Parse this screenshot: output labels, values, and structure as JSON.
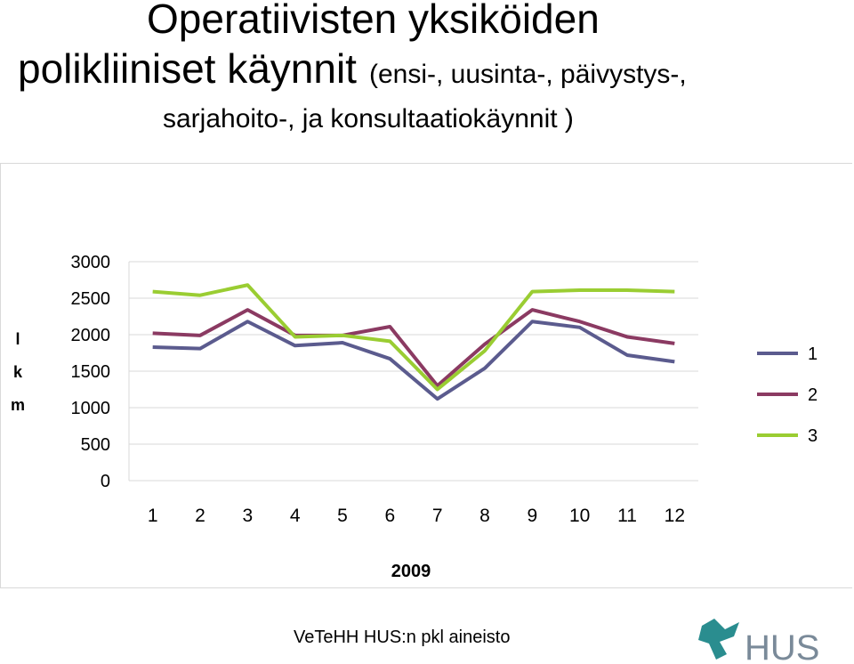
{
  "title": {
    "line1": "Operatiivisten yksiköiden",
    "line2_main": "polikliiniset käynnit",
    "line2_sub": "(ensi-, uusinta-, päivystys-,",
    "line3": "sarjahoito-, ja konsultaatiokäynnit )"
  },
  "footer": {
    "source": "VeTeHH HUS:n pkl aineisto",
    "logo_text": "HUS"
  },
  "colors": {
    "series1": "#5b5b8e",
    "series2": "#8b3a62",
    "series3": "#9acd32",
    "grid": "#d9d9d9",
    "logo_teal": "#2a8d8f",
    "logo_gray": "#7a8a99"
  },
  "chart_data": {
    "type": "line",
    "xlabel": "2009",
    "ylabel": "l k m",
    "ylim": [
      0,
      3000
    ],
    "yticks": [
      3000,
      2500,
      2000,
      1500,
      1000,
      500,
      0
    ],
    "grid": true,
    "legend_position": "right",
    "categories": [
      "1",
      "2",
      "3",
      "4",
      "5",
      "6",
      "7",
      "8",
      "9",
      "10",
      "11",
      "12"
    ],
    "series": [
      {
        "name": "1",
        "values": [
          1830,
          1810,
          2180,
          1850,
          1890,
          1670,
          1120,
          1540,
          2180,
          2100,
          1720,
          1630
        ]
      },
      {
        "name": "2",
        "values": [
          2020,
          1990,
          2340,
          1990,
          1990,
          2110,
          1300,
          1870,
          2340,
          2180,
          1970,
          1880
        ]
      },
      {
        "name": "3",
        "values": [
          2590,
          2540,
          2680,
          1970,
          1990,
          1910,
          1250,
          1780,
          2590,
          2610,
          2610,
          2590
        ]
      }
    ]
  }
}
